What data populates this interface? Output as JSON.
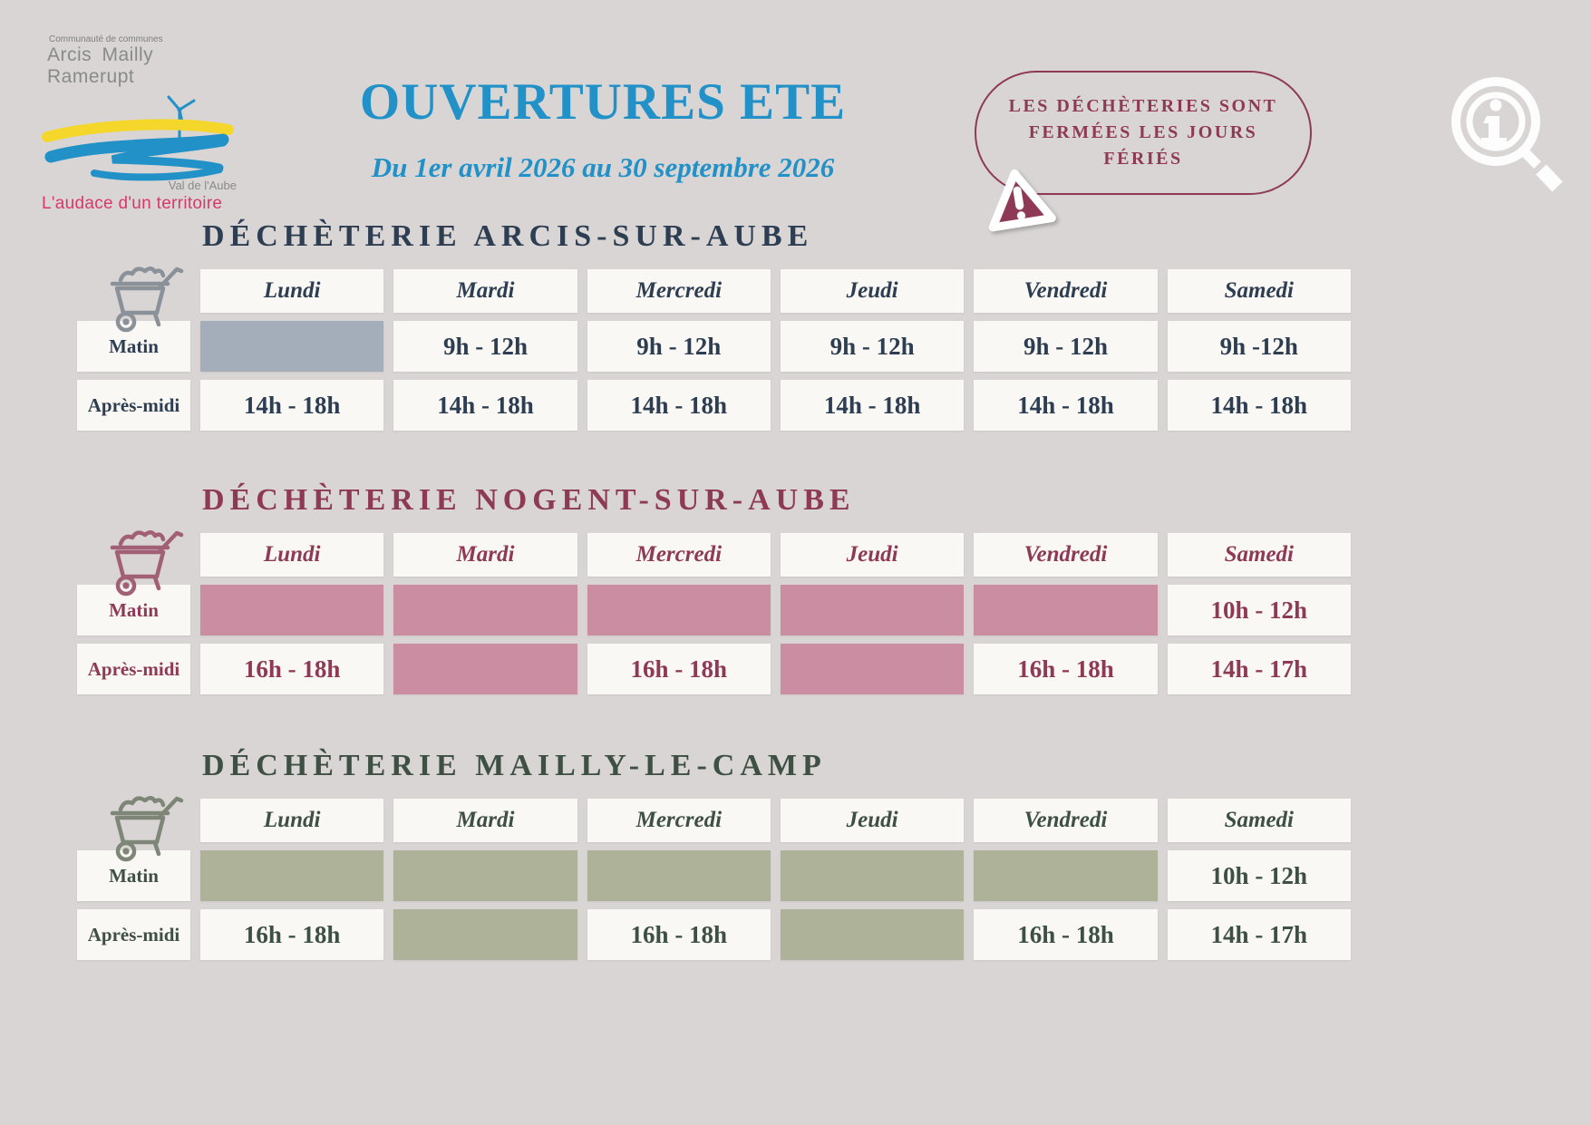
{
  "logo": {
    "org_small": "Communauté de communes",
    "org_name": "Arcis  Mailly  Ramerupt",
    "region": "Val de l'Aube",
    "tagline": "L'audace d'un territoire",
    "colors": {
      "river_blue": "#2191c8",
      "band_yellow": "#f5d72c",
      "tagline_pink": "#d8386d",
      "text_gray": "#8a8a8a"
    }
  },
  "header": {
    "title": "OUVERTURES ETE",
    "subtitle": "Du 1er avril 2026 au 30 septembre 2026",
    "accent_color": "#2191c8"
  },
  "notice": {
    "text": "LES DÉCHÈTERIES SONT FERMÉES LES JOURS FÉRIÉS",
    "color": "#8e3a56"
  },
  "days": [
    "Lundi",
    "Mardi",
    "Mercredi",
    "Jeudi",
    "Vendredi",
    "Samedi"
  ],
  "sections": [
    {
      "id": "arcis-sur-aube",
      "title": "DÉCHÈTERIE ARCIS-SUR-AUBE",
      "theme": {
        "accent": "#2e3e52",
        "closed_fill": "#a4aebb",
        "icon_color": "#8b9199"
      },
      "rows": [
        {
          "label": "Matin",
          "cells": [
            null,
            "9h - 12h",
            "9h - 12h",
            "9h - 12h",
            "9h - 12h",
            "9h -12h"
          ]
        },
        {
          "label": "Après-midi",
          "cells": [
            "14h - 18h",
            "14h - 18h",
            "14h - 18h",
            "14h - 18h",
            "14h - 18h",
            "14h - 18h"
          ]
        }
      ]
    },
    {
      "id": "nogent-sur-aube",
      "title": "DÉCHÈTERIE NOGENT-SUR-AUBE",
      "theme": {
        "accent": "#8e3a56",
        "closed_fill": "#ca8da1",
        "icon_color": "#a26077"
      },
      "rows": [
        {
          "label": "Matin",
          "cells": [
            null,
            null,
            null,
            null,
            null,
            "10h - 12h"
          ]
        },
        {
          "label": "Après-midi",
          "cells": [
            "16h - 18h",
            null,
            "16h - 18h",
            null,
            "16h - 18h",
            "14h - 17h"
          ]
        }
      ]
    },
    {
      "id": "mailly-le-camp",
      "title": "DÉCHÈTERIE MAILLY-LE-CAMP",
      "theme": {
        "accent": "#3e5044",
        "closed_fill": "#adb299",
        "icon_color": "#7e8677"
      },
      "rows": [
        {
          "label": "Matin",
          "cells": [
            null,
            null,
            null,
            null,
            null,
            "10h - 12h"
          ]
        },
        {
          "label": "Après-midi",
          "cells": [
            "16h - 18h",
            null,
            "16h - 18h",
            null,
            "16h - 18h",
            "14h - 17h"
          ]
        }
      ]
    }
  ],
  "legend": {
    "closed_cell_meaning": "fermé"
  }
}
